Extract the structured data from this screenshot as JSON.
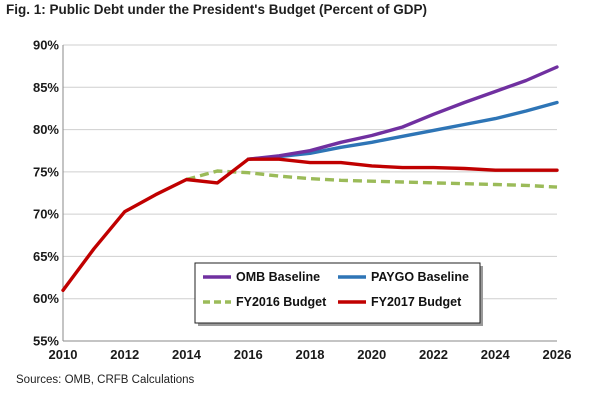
{
  "title": "Fig. 1: Public Debt under the President's Budget (Percent of GDP)",
  "source": "Sources: OMB, CRFB Calculations",
  "chart_data": {
    "type": "line",
    "title": "Fig. 1: Public Debt under the President's Budget (Percent of GDP)",
    "xlabel": "",
    "ylabel": "",
    "xlim": [
      2010,
      2026
    ],
    "ylim": [
      55,
      90
    ],
    "xticks": [
      2010,
      2012,
      2014,
      2016,
      2018,
      2020,
      2022,
      2024,
      2026
    ],
    "yticks": [
      55,
      60,
      65,
      70,
      75,
      80,
      85,
      90
    ],
    "ytick_labels": [
      "55%",
      "60%",
      "65%",
      "70%",
      "75%",
      "80%",
      "85%",
      "90%"
    ],
    "grid": "horizontal",
    "legend_placement": "lower-center",
    "series": [
      {
        "name": "OMB Baseline",
        "color": "#7030a0",
        "dashed": false,
        "x": [
          2016,
          2017,
          2018,
          2019,
          2020,
          2021,
          2022,
          2023,
          2024,
          2025,
          2026
        ],
        "y": [
          76.5,
          76.9,
          77.5,
          78.5,
          79.3,
          80.3,
          81.8,
          83.2,
          84.5,
          85.8,
          87.4
        ]
      },
      {
        "name": "PAYGO Baseline",
        "color": "#2e75b6",
        "dashed": false,
        "x": [
          2016,
          2017,
          2018,
          2019,
          2020,
          2021,
          2022,
          2023,
          2024,
          2025,
          2026
        ],
        "y": [
          76.5,
          76.8,
          77.2,
          77.9,
          78.5,
          79.2,
          79.9,
          80.6,
          81.3,
          82.2,
          83.2
        ]
      },
      {
        "name": "FY2016 Budget",
        "color": "#9bbb59",
        "dashed": true,
        "x": [
          2014,
          2015,
          2016,
          2017,
          2018,
          2019,
          2020,
          2021,
          2022,
          2023,
          2024,
          2025,
          2026
        ],
        "y": [
          74.1,
          75.1,
          74.9,
          74.5,
          74.2,
          74.0,
          73.9,
          73.8,
          73.7,
          73.6,
          73.5,
          73.4,
          73.2
        ]
      },
      {
        "name": "FY2017 Budget",
        "color": "#c00000",
        "dashed": false,
        "x": [
          2010,
          2011,
          2012,
          2013,
          2014,
          2015,
          2016,
          2017,
          2018,
          2019,
          2020,
          2021,
          2022,
          2023,
          2024,
          2025,
          2026
        ],
        "y": [
          61.0,
          65.9,
          70.3,
          72.3,
          74.1,
          73.7,
          76.5,
          76.5,
          76.1,
          76.1,
          75.7,
          75.5,
          75.5,
          75.4,
          75.2,
          75.2,
          75.2
        ]
      }
    ]
  }
}
